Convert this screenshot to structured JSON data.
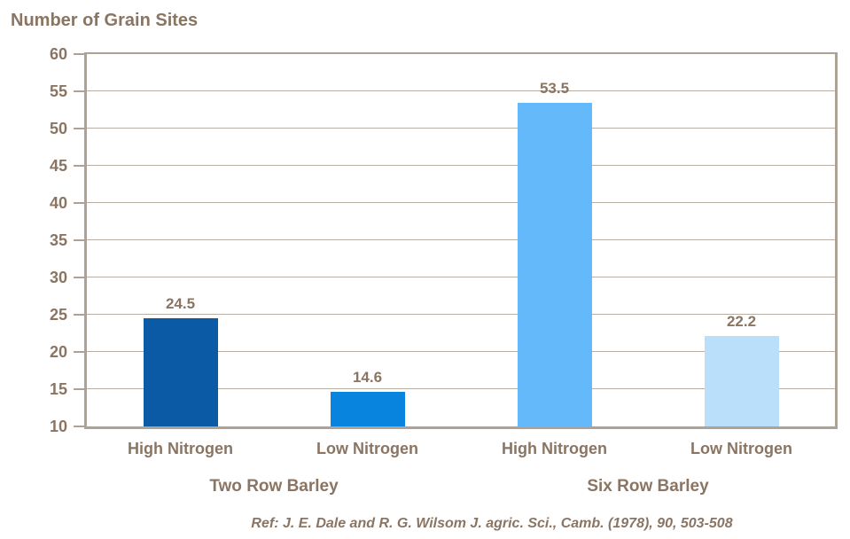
{
  "chart_data": {
    "type": "bar",
    "title": "Number of Grain Sites",
    "xlabel": "",
    "ylabel": "Number of Grain Sites",
    "ylim": [
      10,
      60
    ],
    "yticks": [
      10,
      15,
      20,
      25,
      30,
      35,
      40,
      45,
      50,
      55,
      60
    ],
    "grid": true,
    "legend": "none",
    "groups": [
      {
        "label": "Two Row Barley",
        "bars": [
          {
            "category": "High Nitrogen",
            "value": 24.5,
            "value_label": "24.5",
            "color": "#0A5AA5"
          },
          {
            "category": "Low Nitrogen",
            "value": 14.6,
            "value_label": "14.6",
            "color": "#0984DE"
          }
        ]
      },
      {
        "label": "Six Row Barley",
        "bars": [
          {
            "category": "High Nitrogen",
            "value": 53.5,
            "value_label": "53.5",
            "color": "#64B9FB"
          },
          {
            "category": "Low Nitrogen",
            "value": 22.2,
            "value_label": "22.2",
            "color": "#BADFFB"
          }
        ]
      }
    ],
    "footnote": "Ref: J. E. Dale and R. G. Wilsom J. agric. Sci., Camb. (1978), 90, 503-508",
    "colors": {
      "text": "#8A7563",
      "axis_frame": "#AEA295",
      "gridline": "#B8AEA1",
      "background": "#FFFFFF"
    }
  }
}
